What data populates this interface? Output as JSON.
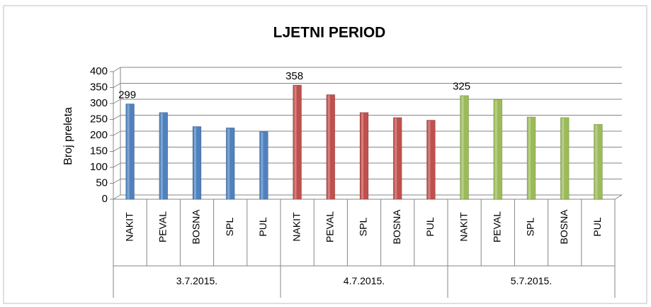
{
  "chart_data": {
    "type": "bar",
    "title": "LJETNI PERIOD",
    "y_label": "Broj preleta",
    "ylim": [
      0,
      400
    ],
    "yticks": [
      0,
      50,
      100,
      150,
      200,
      250,
      300,
      350,
      400
    ],
    "grid": true,
    "series": [
      {
        "name": "3.7.2015.",
        "color": "#4f81bd",
        "categories": [
          "NAKIT",
          "PEVAL",
          "BOSNA",
          "SPL",
          "PUL"
        ],
        "values": [
          299,
          272,
          228,
          224,
          212
        ],
        "value_labels": [
          "299",
          null,
          null,
          null,
          null
        ]
      },
      {
        "name": "4.7.2015.",
        "color": "#c0504d",
        "categories": [
          "NAKIT",
          "PEVAL",
          "SPL",
          "BOSNA",
          "PUL"
        ],
        "values": [
          358,
          328,
          272,
          256,
          248
        ],
        "value_labels": [
          "358",
          null,
          null,
          null,
          null
        ]
      },
      {
        "name": "5.7.2015.",
        "color": "#9bbb59",
        "categories": [
          "NAKIT",
          "PEVAL",
          "SPL",
          "BOSNA",
          "PUL"
        ],
        "values": [
          325,
          312,
          258,
          256,
          235
        ],
        "value_labels": [
          "325",
          null,
          null,
          null,
          null
        ]
      }
    ]
  }
}
